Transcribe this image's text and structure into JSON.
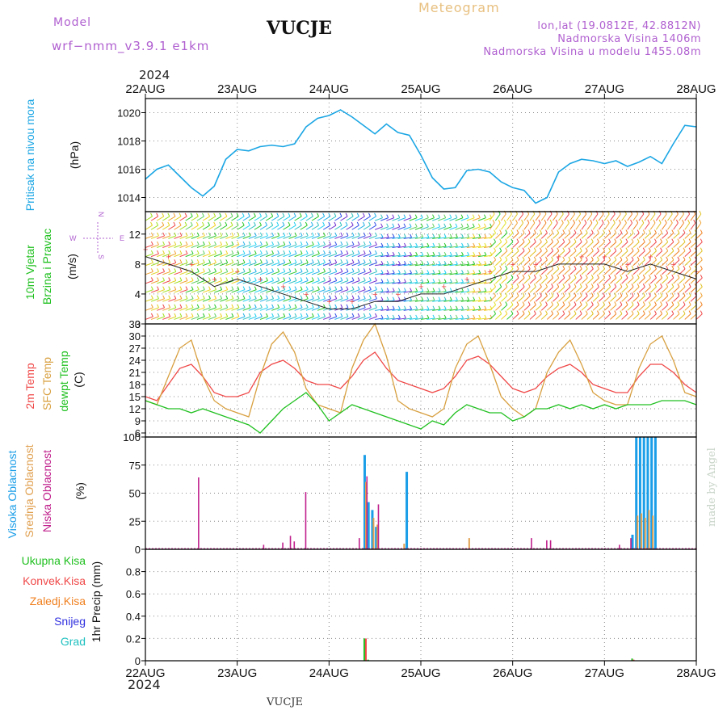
{
  "header": {
    "model_label": "Model",
    "model_name": "wrf−nmm_v3.9.1  e1km",
    "station": "VUCJE",
    "meteogram": "Meteogram",
    "lonlat": "lon,lat (19.0812E, 42.8812N)",
    "altitude": "Nadmorska Visina 1406m",
    "model_altitude": "Nadmorska Visina u modelu 1455.08m",
    "year_top": "2024",
    "year_bottom": "2024",
    "footer_station": "VUCJE",
    "credit": "made by Angel"
  },
  "colors": {
    "pressure": "#1ba6e4",
    "temp2m": "#f04848",
    "sfc": "#d8a040",
    "dewpt": "#20c020",
    "high_cloud": "#1b9ee8",
    "mid_cloud": "#e0a050",
    "low_cloud": "#c0208c",
    "total_precip": "#20c020",
    "conv_precip": "#f04848",
    "frozen": "#f08020",
    "snow": "#3030e0",
    "hail": "#20c0c0",
    "wind_green": "#28c828",
    "wind_speed_label": "#20c020"
  },
  "chart_data": [
    {
      "type": "line",
      "ylabel_lines": [
        "Pritisak na nivou mora",
        "(hPa)"
      ],
      "x_ticks": [
        "22AUG",
        "23AUG",
        "24AUG",
        "25AUG",
        "26AUG",
        "27AUG",
        "28AUG"
      ],
      "ylim": [
        1013,
        1021
      ],
      "yticks": [
        1014,
        1016,
        1018,
        1020
      ],
      "grid": true,
      "x": [
        0,
        3,
        6,
        9,
        12,
        15,
        18,
        21,
        24,
        27,
        30,
        33,
        36,
        39,
        42,
        45,
        48,
        51,
        54,
        57,
        60,
        63,
        66,
        69,
        72,
        75,
        78,
        81,
        84,
        87,
        90,
        93,
        96,
        99,
        102,
        105,
        108,
        111,
        114,
        117,
        120,
        123,
        126,
        129,
        132,
        135,
        138,
        141,
        144
      ],
      "series": [
        {
          "values": [
            1015.3,
            1016.0,
            1016.3,
            1015.5,
            1014.7,
            1014.1,
            1014.8,
            1016.7,
            1017.4,
            1017.3,
            1017.6,
            1017.7,
            1017.6,
            1017.8,
            1019.0,
            1019.6,
            1019.8,
            1020.2,
            1019.7,
            1019.1,
            1018.5,
            1019.2,
            1018.6,
            1018.4,
            1017.0,
            1015.4,
            1014.6,
            1014.7,
            1015.9,
            1016.0,
            1015.8,
            1015.1,
            1014.7,
            1014.5,
            1013.6,
            1014.0,
            1015.8,
            1016.4,
            1016.7,
            1016.6,
            1016.4,
            1016.6,
            1016.2,
            1016.5,
            1016.9,
            1016.4,
            1017.8,
            1019.1,
            1019.0
          ]
        }
      ]
    },
    {
      "type": "scatter",
      "ylabel_lines": [
        "10m Vjetar",
        "Brzina i Pravac",
        "(m/s)"
      ],
      "ylim": [
        0,
        15
      ],
      "yticks": [
        0,
        4,
        8,
        12
      ],
      "grid": true,
      "compass": {
        "n": "N",
        "e": "E",
        "s": "S",
        "w": "W"
      },
      "x": [
        0,
        6,
        12,
        18,
        24,
        30,
        36,
        42,
        48,
        54,
        60,
        66,
        72,
        78,
        84,
        90,
        96,
        102,
        108,
        114,
        120,
        126,
        132,
        138,
        144
      ],
      "series": [
        {
          "values": [
            9,
            8,
            7,
            5,
            6,
            5,
            4,
            3,
            2,
            2,
            3,
            3,
            4,
            4,
            5,
            6,
            7,
            7,
            8,
            8,
            8,
            7,
            8,
            7,
            6
          ]
        }
      ]
    },
    {
      "type": "line",
      "ylabel_lines": [
        "2m Temp",
        "SFC Temp",
        "dewpt Temp",
        "(C)"
      ],
      "ylim": [
        5,
        33
      ],
      "yticks": [
        6,
        9,
        12,
        15,
        18,
        21,
        24,
        27,
        30,
        33
      ],
      "grid": true,
      "x": [
        0,
        3,
        6,
        9,
        12,
        15,
        18,
        21,
        24,
        27,
        30,
        33,
        36,
        39,
        42,
        45,
        48,
        51,
        54,
        57,
        60,
        63,
        66,
        69,
        72,
        75,
        78,
        81,
        84,
        87,
        90,
        93,
        96,
        99,
        102,
        105,
        108,
        111,
        114,
        117,
        120,
        123,
        126,
        129,
        132,
        135,
        138,
        141,
        144
      ],
      "series": [
        {
          "name": "2m Temp",
          "values": [
            15,
            14,
            18,
            22,
            23,
            20,
            16,
            15,
            15,
            16,
            21,
            23,
            24,
            22,
            19,
            18,
            18,
            17,
            20,
            24,
            26,
            22,
            19,
            18,
            17,
            16,
            17,
            20,
            24,
            25,
            23,
            20,
            17,
            16,
            17,
            20,
            22,
            23,
            21,
            18,
            17,
            16,
            16,
            20,
            23,
            23,
            21,
            18,
            16
          ]
        },
        {
          "name": "SFC Temp",
          "values": [
            14,
            13,
            20,
            27,
            29,
            20,
            14,
            12,
            11,
            10,
            20,
            28,
            31,
            26,
            17,
            13,
            12,
            11,
            22,
            29,
            33,
            25,
            14,
            12,
            11,
            10,
            12,
            22,
            28,
            30,
            23,
            15,
            12,
            10,
            12,
            21,
            26,
            29,
            23,
            16,
            14,
            13,
            13,
            22,
            28,
            30,
            24,
            16,
            15
          ]
        },
        {
          "name": "dewpt Temp",
          "values": [
            14,
            13,
            12,
            12,
            11,
            12,
            11,
            10,
            9,
            8,
            6,
            9,
            12,
            14,
            16,
            13,
            9,
            11,
            13,
            12,
            11,
            10,
            9,
            8,
            7,
            9,
            8,
            11,
            13,
            12,
            11,
            11,
            9,
            10,
            12,
            12,
            13,
            12,
            13,
            12,
            13,
            12,
            13,
            13,
            13,
            14,
            14,
            14,
            13
          ]
        }
      ]
    },
    {
      "type": "bar",
      "ylabel_lines": [
        "Visoka Oblacnost",
        "Srednja Oblacnost",
        "Niska Oblacnost",
        "(%)"
      ],
      "ylim": [
        0,
        100
      ],
      "yticks": [
        0,
        25,
        50,
        75,
        100
      ],
      "grid": true,
      "series": [
        {
          "name": "Visoka Oblacnost",
          "points": [
            [
              57,
              84
            ],
            [
              58,
              42
            ],
            [
              59,
              35
            ],
            [
              60,
              20
            ],
            [
              68,
              69
            ],
            [
              127,
              13
            ],
            [
              128,
              100
            ],
            [
              129,
              100
            ],
            [
              130,
              100
            ],
            [
              131,
              100
            ],
            [
              132,
              100
            ],
            [
              133,
              100
            ]
          ]
        },
        {
          "name": "Srednja Oblacnost",
          "points": [
            [
              57,
              60
            ],
            [
              59,
              28
            ],
            [
              60,
              22
            ],
            [
              67,
              5
            ],
            [
              84,
              10
            ],
            [
              128,
              30
            ],
            [
              129,
              32
            ],
            [
              130,
              28
            ],
            [
              131,
              35
            ],
            [
              132,
              30
            ]
          ]
        },
        {
          "name": "Niska Oblacnost",
          "points": [
            [
              13,
              64
            ],
            [
              30,
              4
            ],
            [
              35,
              6
            ],
            [
              37,
              12
            ],
            [
              38,
              7
            ],
            [
              41,
              51
            ],
            [
              55,
              10
            ],
            [
              57,
              65
            ],
            [
              60,
              40
            ],
            [
              100,
              10
            ],
            [
              104,
              8
            ],
            [
              105,
              8
            ],
            [
              123,
              4
            ],
            [
              126,
              10
            ]
          ]
        }
      ]
    },
    {
      "type": "bar",
      "ylabel_lines": [
        "1hr Precip (mm)"
      ],
      "legend": [
        "Ukupna  Kisa",
        "Konvek.Kisa",
        "Zaledj.Kisa",
        "Snijeg",
        "Grad"
      ],
      "ylim": [
        0,
        1
      ],
      "yticks": [
        0,
        0.2,
        0.4,
        0.6,
        0.8
      ],
      "grid": true,
      "series": [
        {
          "name": "Ukupna  Kisa",
          "points": [
            [
              57,
              0.2
            ],
            [
              58,
              0.01
            ],
            [
              127,
              0.02
            ]
          ]
        },
        {
          "name": "Konvek.Kisa",
          "points": [
            [
              57,
              0.2
            ],
            [
              127,
              0.01
            ]
          ]
        }
      ]
    }
  ]
}
